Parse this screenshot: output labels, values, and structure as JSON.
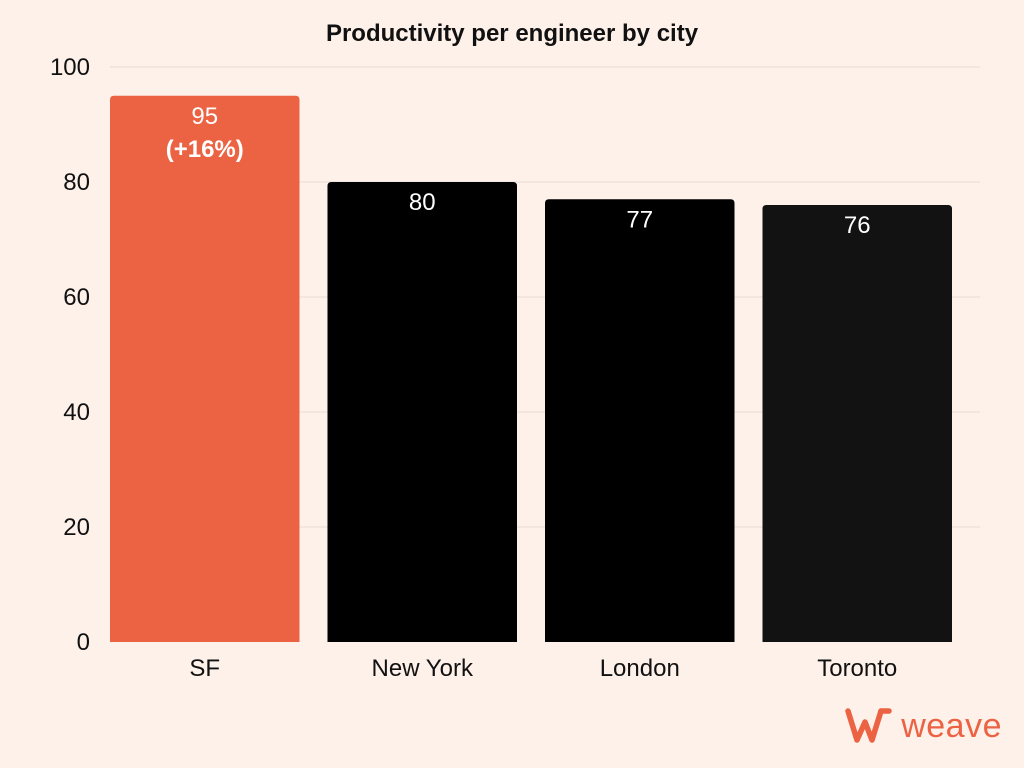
{
  "chart_data": {
    "type": "bar",
    "title": "Productivity per engineer by city",
    "categories": [
      "SF",
      "New York",
      "London",
      "Toronto"
    ],
    "values": [
      95,
      80,
      77,
      76
    ],
    "data_labels": [
      {
        "value": "95",
        "note": "(+16%)"
      },
      {
        "value": "80"
      },
      {
        "value": "77"
      },
      {
        "value": "76"
      }
    ],
    "colors": [
      "#ec6344",
      "#000000",
      "#000000",
      "#121212"
    ],
    "ylim": [
      0,
      100
    ],
    "yticks": [
      "0",
      "20",
      "40",
      "60",
      "80",
      "100"
    ],
    "grid": true,
    "legend": "none"
  },
  "brand": {
    "name": "weave",
    "color": "#ec6344"
  }
}
